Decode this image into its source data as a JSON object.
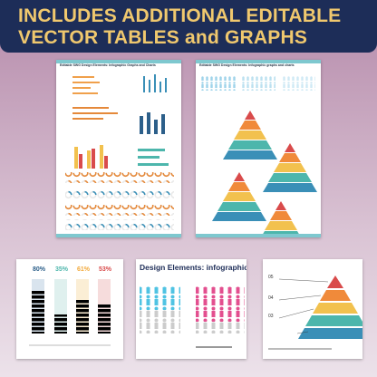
{
  "banner": {
    "line1": "INCLUDES ADDITIONAL EDITABLE",
    "line2": "VECTOR TABLES and GRAPHS"
  },
  "pages": [
    {
      "title": "Editable SWG Design Elements: Infographic Graphs and Charts"
    },
    {
      "title": "Editable SWG Design Elements: Infographic graphs and charts"
    }
  ],
  "thumbnails": {
    "percents": [
      "80%",
      "35%",
      "61%",
      "53%"
    ],
    "heading": "Design Elements: infographic gra",
    "levels": [
      "05",
      "04",
      "03"
    ]
  }
}
